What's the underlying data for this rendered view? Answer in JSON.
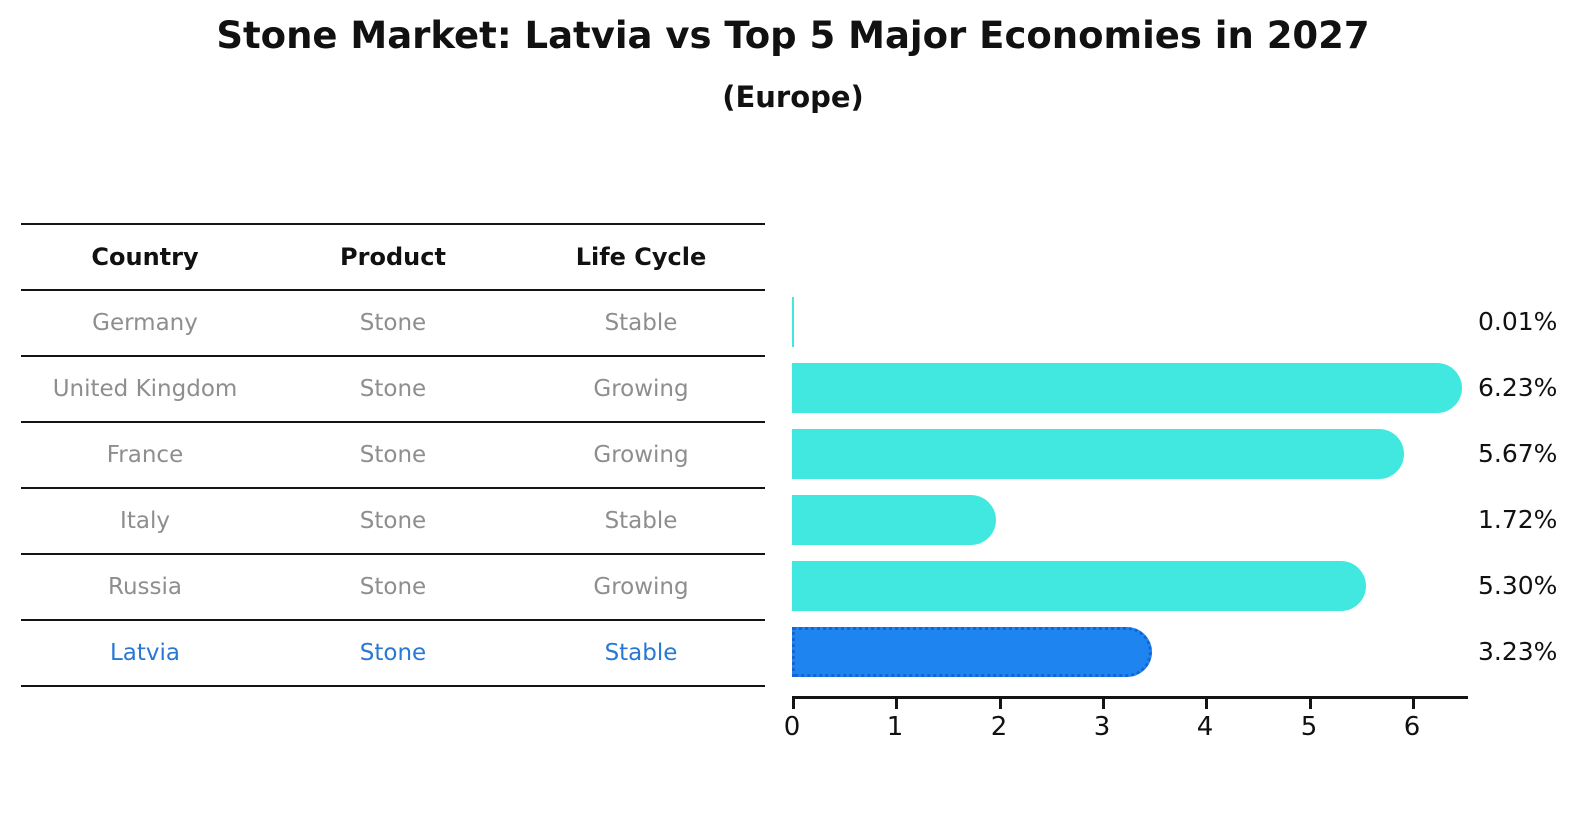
{
  "title": "Stone Market: Latvia vs Top 5 Major Economies in 2027",
  "subtitle": "(Europe)",
  "table": {
    "headers": [
      "Country",
      "Product",
      "Life Cycle"
    ],
    "rows": [
      {
        "country": "Germany",
        "product": "Stone",
        "life_cycle": "Stable"
      },
      {
        "country": "United Kingdom",
        "product": "Stone",
        "life_cycle": "Growing"
      },
      {
        "country": "France",
        "product": "Stone",
        "life_cycle": "Growing"
      },
      {
        "country": "Italy",
        "product": "Stone",
        "life_cycle": "Stable"
      },
      {
        "country": "Russia",
        "product": "Stone",
        "life_cycle": "Growing"
      },
      {
        "country": "Latvia",
        "product": "Stone",
        "life_cycle": "Stable"
      }
    ]
  },
  "chart_data": {
    "type": "bar",
    "orientation": "horizontal",
    "title": "Stone Market: Latvia vs Top 5 Major Economies in 2027 (Europe)",
    "categories": [
      "Germany",
      "United Kingdom",
      "France",
      "Italy",
      "Russia",
      "Latvia"
    ],
    "values": [
      0.01,
      6.23,
      5.67,
      1.72,
      5.3,
      3.23
    ],
    "value_labels": [
      "0.01%",
      "6.23%",
      "5.67%",
      "1.72%",
      "5.30%",
      "3.23%"
    ],
    "unit": "%",
    "x_ticks": [
      0,
      1,
      2,
      3,
      4,
      5,
      6
    ],
    "x_tick_labels": [
      "0",
      "1",
      "2",
      "3",
      "4",
      "5",
      "6"
    ],
    "xlim": [
      0,
      6.54
    ],
    "grid": false,
    "legend": false,
    "highlight_category": "Latvia",
    "colors": {
      "bar_default": "#40e8e0",
      "bar_highlight": "#1e84f0",
      "bar_highlight_border": "#1465d2",
      "highlight_text": "#2878d4",
      "table_text": "#8e8e8e",
      "axis": "#141414"
    }
  }
}
